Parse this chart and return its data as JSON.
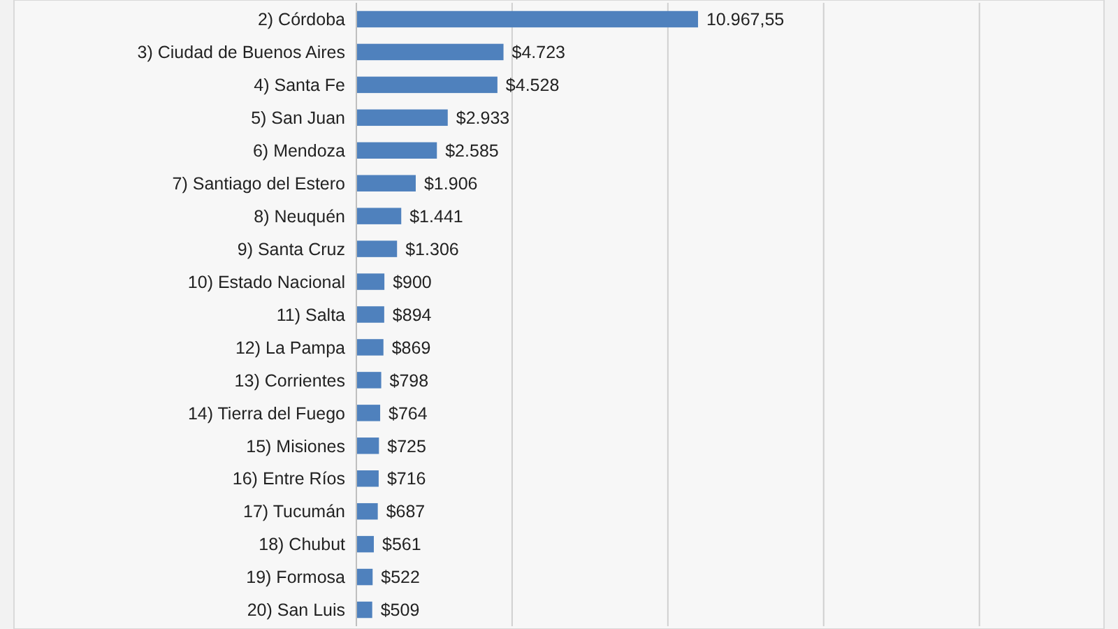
{
  "chart_data": {
    "type": "bar",
    "orientation": "horizontal",
    "categories": [
      "2) Córdoba",
      "3) Ciudad de Buenos Aires",
      "4) Santa Fe",
      "5) San Juan",
      "6) Mendoza",
      "7) Santiago del Estero",
      "8) Neuquén",
      "9) Santa Cruz",
      "10) Estado Nacional",
      "11) Salta",
      "12) La Pampa",
      "13) Corrientes",
      "14) Tierra del Fuego",
      "15) Misiones",
      "16) Entre Ríos",
      "17) Tucumán",
      "18) Chubut",
      "19) Formosa",
      "20) San Luis"
    ],
    "values": [
      10967.55,
      4723,
      4528,
      2933,
      2585,
      1906,
      1441,
      1306,
      900,
      894,
      869,
      798,
      764,
      725,
      716,
      687,
      561,
      522,
      509
    ],
    "value_labels": [
      "10.967,55",
      "$4.723",
      "$4.528",
      "$2.933",
      "$2.585",
      "$1.906",
      "$1.441",
      "$1.306",
      "$900",
      "$894",
      "$869",
      "$798",
      "$764",
      "$725",
      "$716",
      "$687",
      "$561",
      "$522",
      "$509"
    ],
    "color": "#4f81bd",
    "xlim": [
      0,
      24000
    ],
    "xticks": [
      {
        "value": 5000,
        "label": null
      },
      {
        "value": 10000,
        "label": null
      },
      {
        "value": 15000,
        "label": null
      },
      {
        "value": 20000,
        "label": null
      }
    ],
    "grid": "x"
  }
}
